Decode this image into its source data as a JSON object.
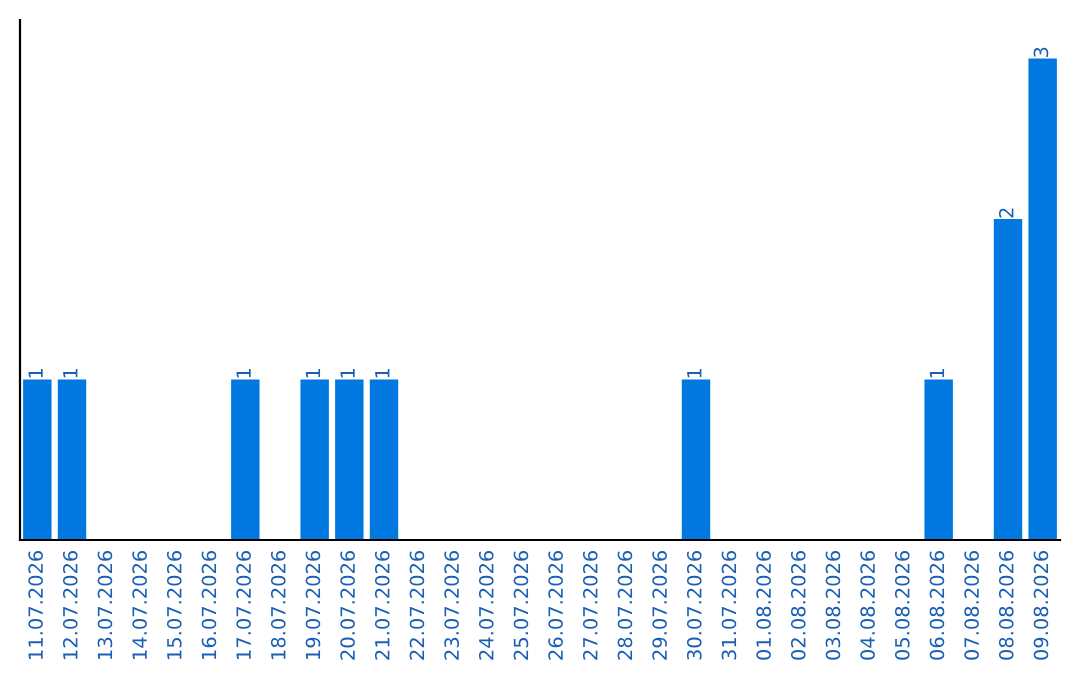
{
  "chart_data": {
    "type": "bar",
    "categories": [
      "11.07.2026",
      "12.07.2026",
      "13.07.2026",
      "14.07.2026",
      "15.07.2026",
      "16.07.2026",
      "17.07.2026",
      "18.07.2026",
      "19.07.2026",
      "20.07.2026",
      "21.07.2026",
      "22.07.2026",
      "23.07.2026",
      "24.07.2026",
      "25.07.2026",
      "26.07.2026",
      "27.07.2026",
      "28.07.2026",
      "29.07.2026",
      "30.07.2026",
      "31.07.2026",
      "01.08.2026",
      "02.08.2026",
      "03.08.2026",
      "04.08.2026",
      "05.08.2026",
      "06.08.2026",
      "07.08.2026",
      "08.08.2026",
      "09.08.2026"
    ],
    "values": [
      1,
      1,
      0,
      0,
      0,
      0,
      1,
      0,
      1,
      1,
      1,
      0,
      0,
      0,
      0,
      0,
      0,
      0,
      0,
      1,
      0,
      0,
      0,
      0,
      0,
      0,
      1,
      0,
      2,
      3
    ],
    "value_labels": [
      "1",
      "1",
      null,
      null,
      null,
      null,
      "1",
      null,
      "1",
      "1",
      "1",
      null,
      null,
      null,
      null,
      null,
      null,
      null,
      null,
      "1",
      null,
      null,
      null,
      null,
      null,
      null,
      "1",
      null,
      "2",
      "3"
    ],
    "color": "#0078e0",
    "tick_labels": "x",
    "grid": false,
    "legend": false
  }
}
